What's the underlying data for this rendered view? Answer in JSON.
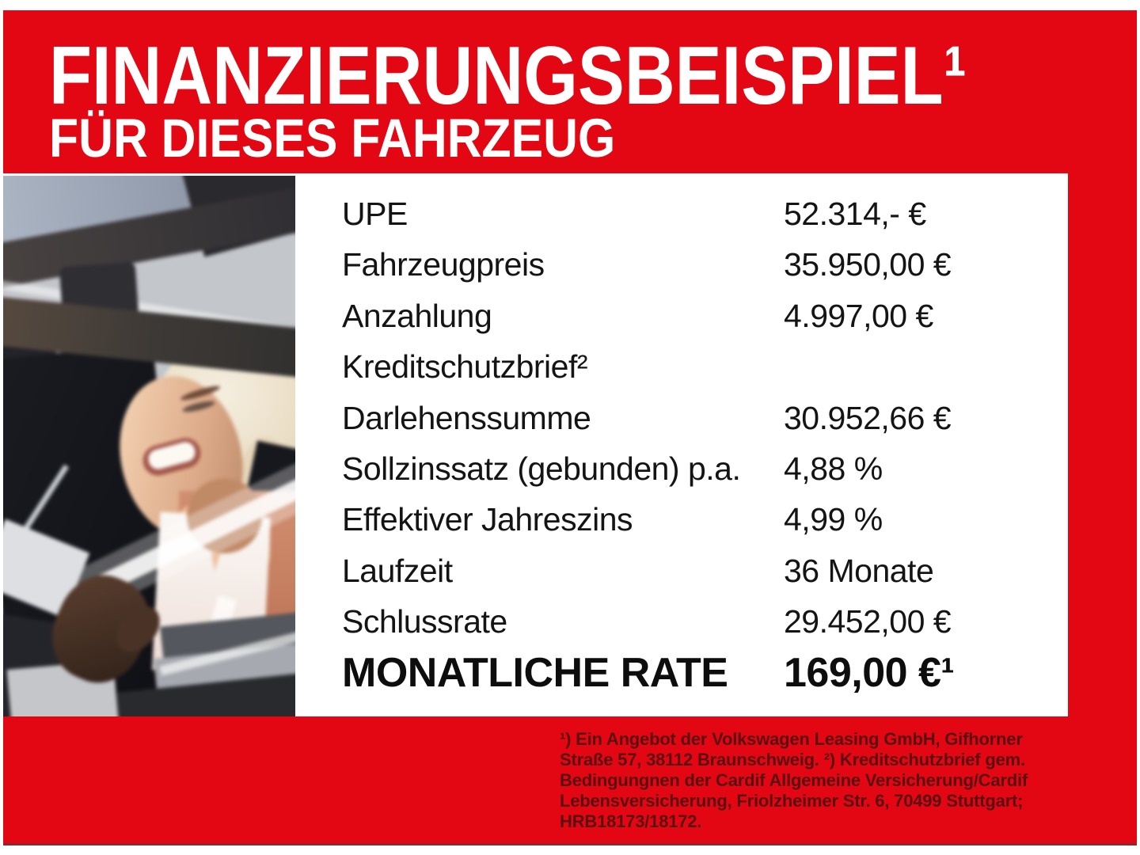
{
  "banner": {
    "title": "FINANZIERUNGSBEISPIEL¹",
    "subtitle": "FÜR DIESES FAHRZEUG"
  },
  "finance_table": {
    "rows": [
      {
        "label": "UPE",
        "value": "52.314,- €"
      },
      {
        "label": "Fahrzeugpreis",
        "value": "35.950,00 €"
      },
      {
        "label": "Anzahlung",
        "value": "4.997,00 €"
      },
      {
        "label": "Kreditschutzbrief²",
        "value": ""
      },
      {
        "label": "Darlehenssumme",
        "value": "30.952,66 €"
      },
      {
        "label": "Sollzinssatz (gebunden) p.a.",
        "value": "4,88 %"
      },
      {
        "label": "Effektiver Jahreszins",
        "value": "4,99 %"
      },
      {
        "label": "Laufzeit",
        "value": "36 Monate"
      },
      {
        "label": "Schlussrate",
        "value": "29.452,00 €"
      }
    ],
    "total_row": {
      "label": "MONATLICHE RATE",
      "value": "169,00 €¹"
    }
  },
  "disclaimer": {
    "lines": [
      "¹) Ein Angebot der Volkswagen Leasing GmbH, Gifhorner",
      "Straße 57, 38112 Braunschweig. ²) Kreditschutzbrief gem.",
      "Bedingungnen der Cardif Allgemeine Versicherung/Cardif",
      "Lebensversicherung, Friolzheimer Str. 6, 70499 Stuttgart;",
      "HRB18173/18172."
    ]
  },
  "photo": {
    "description": "Smiling woman with short platinum-blonde hair and dark jacket leaning out of an open car window"
  },
  "colors": {
    "poster_red": "#e30613",
    "headline_text": "#ffffff",
    "table_text": "#141414",
    "disclaimer_text": "#5a0f12"
  }
}
